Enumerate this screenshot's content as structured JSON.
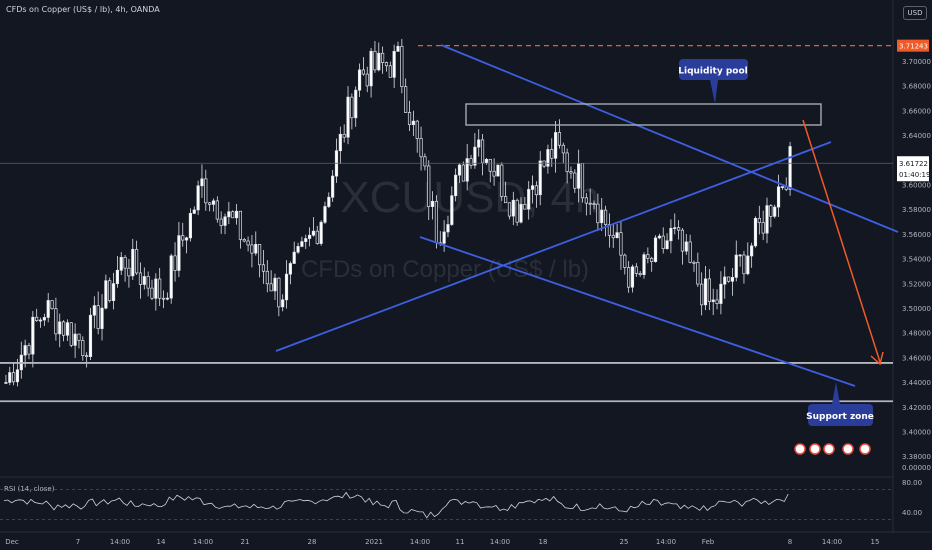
{
  "header": {
    "title": "CFDs on Copper (US$ / lb), 4h, OANDA"
  },
  "currency": "USD",
  "watermark": {
    "symbol": "XCUUSD, 4h",
    "description": "CFDs on Copper (US$ / lb)"
  },
  "rsi_label": "RSI (14, close)",
  "colors": {
    "background": "#131722",
    "trendline": "#3d5fe0",
    "price_line": "#d1d4dc",
    "red_dashed": "#f05a28",
    "label_box": "#2a3d9a"
  },
  "price_axis": {
    "ticks": [
      "3.70000",
      "3.68000",
      "3.66000",
      "3.64000",
      "3.60000",
      "3.58000",
      "3.56000",
      "3.54000",
      "3.52000",
      "3.50000",
      "3.48000",
      "3.46000",
      "3.44000",
      "3.42000",
      "3.40000",
      "3.38000"
    ],
    "zero_tick": "0.00000",
    "last_price": "3.61722",
    "countdown": "01:40:19",
    "high_label": "3.71243"
  },
  "rsi_axis": {
    "ticks": [
      "80.00",
      "40.00"
    ]
  },
  "time_axis": {
    "ticks": [
      "Dec",
      "7",
      "14:00",
      "14",
      "14:00",
      "21",
      "28",
      "2021",
      "14:00",
      "11",
      "14:00",
      "18",
      "25",
      "14:00",
      "Feb",
      "8",
      "14:00",
      "15"
    ]
  },
  "annotations": {
    "liquidity_pool": "Liquidity pool",
    "support_zone": "Support zone"
  },
  "chart_data": {
    "type": "candlestick",
    "title": "CFDs on Copper (US$ / lb), 4h, OANDA",
    "ylim": [
      3.37,
      3.725
    ],
    "close_series_approx": [
      {
        "x": "Dec 1",
        "y": 3.44
      },
      {
        "x": "Dec 4",
        "y": 3.5
      },
      {
        "x": "Dec 7",
        "y": 3.47
      },
      {
        "x": "Dec 10",
        "y": 3.54
      },
      {
        "x": "Dec 14",
        "y": 3.51
      },
      {
        "x": "Dec 18",
        "y": 3.6
      },
      {
        "x": "Dec 21",
        "y": 3.56
      },
      {
        "x": "Dec 28",
        "y": 3.51
      },
      {
        "x": "Jan 1",
        "y": 3.57
      },
      {
        "x": "Jan 6",
        "y": 3.69
      },
      {
        "x": "Jan 8",
        "y": 3.7
      },
      {
        "x": "Jan 11",
        "y": 3.56
      },
      {
        "x": "Jan 15",
        "y": 3.64
      },
      {
        "x": "Jan 18",
        "y": 3.58
      },
      {
        "x": "Jan 22",
        "y": 3.63
      },
      {
        "x": "Jan 25",
        "y": 3.59
      },
      {
        "x": "Jan 28",
        "y": 3.52
      },
      {
        "x": "Feb 1",
        "y": 3.56
      },
      {
        "x": "Feb 3",
        "y": 3.5
      },
      {
        "x": "Feb 5",
        "y": 3.55
      },
      {
        "x": "Feb 8",
        "y": 3.617
      }
    ],
    "horizontal_levels": [
      3.4555,
      3.4245,
      3.71243
    ],
    "last_price": 3.61722
  }
}
